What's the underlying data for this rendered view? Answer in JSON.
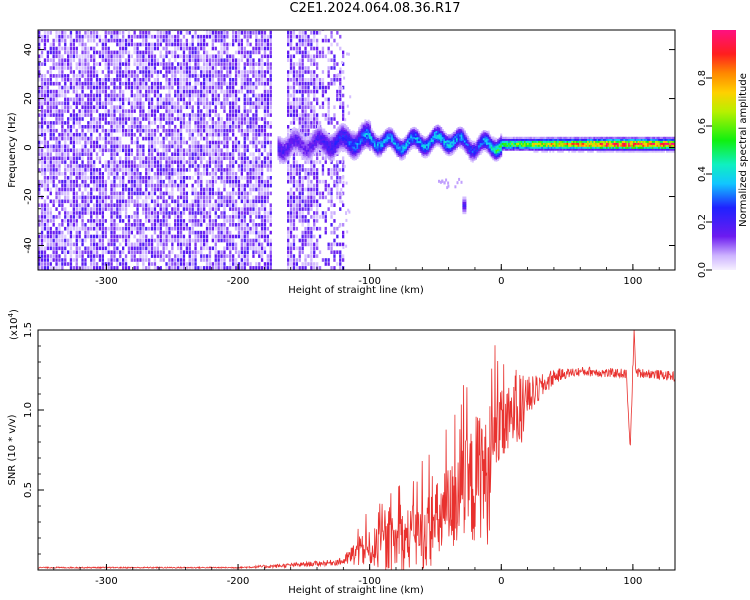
{
  "title": "C2E1.2024.064.08.36.R17",
  "colors": {
    "snr_line": "#e8312e",
    "axis": "#000000",
    "background": "#ffffff"
  },
  "chart_data": [
    {
      "type": "heatmap",
      "xlabel": "Height of straight line (km)",
      "ylabel": "Frequency (Hz)",
      "xlim": [
        -352,
        132
      ],
      "ylim": [
        -50,
        48
      ],
      "xticks": [
        -300,
        -200,
        -100,
        0,
        100
      ],
      "xtick_labels": [
        "-300",
        "-200",
        "-100",
        "0",
        "100"
      ],
      "yticks": [
        -40,
        -20,
        0,
        20,
        40
      ],
      "ytick_labels": [
        "-40",
        "-20",
        "0",
        "20",
        "40"
      ],
      "colorbar": {
        "label": "Normalized spectral amplitude",
        "range": [
          0,
          1
        ],
        "ticks": [
          0.0,
          0.2,
          0.4,
          0.6,
          0.8
        ],
        "tick_labels": [
          "0.0",
          "0.2",
          "0.4",
          "0.6",
          "0.8"
        ],
        "colormap": "rainbow (white-lavender, violet, blue, cyan, green, yellow, orange, red, magenta)"
      },
      "features": {
        "noise_region_x": [
          -352,
          -120
        ],
        "noise_gap_x": [
          -175,
          -165
        ],
        "carrier_band": [
          {
            "x": -170,
            "f": 0,
            "amp": 0.2
          },
          {
            "x": -150,
            "f": 1,
            "amp": 0.15
          },
          {
            "x": -120,
            "f": 2,
            "amp": 0.25
          },
          {
            "x": -100,
            "f": 3,
            "amp": 0.35
          },
          {
            "x": -80,
            "f": 1,
            "amp": 0.35
          },
          {
            "x": -60,
            "f": 2,
            "amp": 0.35
          },
          {
            "x": -40,
            "f": 3,
            "amp": 0.4
          },
          {
            "x": -20,
            "f": 0,
            "amp": 0.25
          },
          {
            "x": 0,
            "f": 1,
            "amp": 0.55
          },
          {
            "x": 20,
            "f": 1,
            "amp": 0.65
          },
          {
            "x": 40,
            "f": 1,
            "amp": 0.75
          },
          {
            "x": 60,
            "f": 1,
            "amp": 0.8
          },
          {
            "x": 80,
            "f": 1,
            "amp": 0.9
          },
          {
            "x": 100,
            "f": 1,
            "amp": 0.9
          },
          {
            "x": 132,
            "f": 1,
            "amp": 0.9
          }
        ],
        "isolated_blob": {
          "x": -28,
          "f": -23,
          "amp": 0.2
        },
        "smear_x_range": [
          -50,
          -30
        ],
        "smear_f_range": [
          -12,
          -16
        ]
      }
    },
    {
      "type": "line",
      "xlabel": "Height of straight line (km)",
      "ylabel": "SNR (10 * v/v)",
      "multiplier_label": "(x10",
      "multiplier_exponent": "4",
      "multiplier_close": ")",
      "xlim": [
        -352,
        132
      ],
      "ylim": [
        0,
        15000
      ],
      "xticks": [
        -300,
        -200,
        -100,
        0,
        100
      ],
      "xtick_labels": [
        "-300",
        "-200",
        "-100",
        "0",
        "100"
      ],
      "yticks": [
        5000,
        10000,
        15000
      ],
      "ytick_labels": [
        "0.5",
        "1.0",
        "1.5"
      ],
      "series": [
        {
          "x": [
            -352,
            -300,
            -250,
            -200,
            -170,
            -150,
            -130,
            -120,
            -110,
            -100,
            -90,
            -80,
            -70,
            -60,
            -50,
            -40,
            -30,
            -20,
            -15,
            -10,
            -5,
            0,
            5,
            10,
            15,
            20,
            30,
            40,
            50,
            60,
            70,
            80,
            90,
            95,
            98,
            100,
            101,
            102,
            105,
            110,
            120,
            132
          ],
          "y": [
            150,
            150,
            150,
            150,
            250,
            350,
            450,
            550,
            1100,
            1300,
            1500,
            1700,
            2000,
            2200,
            2800,
            3800,
            4500,
            5500,
            6500,
            5000,
            8500,
            8800,
            9200,
            9800,
            9600,
            10800,
            11400,
            12100,
            12300,
            12400,
            12400,
            12300,
            12300,
            12250,
            7500,
            12800,
            15200,
            12400,
            12300,
            12300,
            12200,
            12100
          ],
          "noise_amplitude": [
            40,
            40,
            40,
            40,
            120,
            150,
            180,
            250,
            900,
            1100,
            1500,
            1800,
            2000,
            2200,
            2600,
            2800,
            3200,
            4000,
            4500,
            3500,
            2600,
            2400,
            2200,
            2000,
            1800,
            1300,
            800,
            500,
            300,
            300,
            300,
            300,
            300,
            300,
            0,
            600,
            0,
            300,
            300,
            300,
            300,
            300
          ]
        }
      ]
    }
  ]
}
